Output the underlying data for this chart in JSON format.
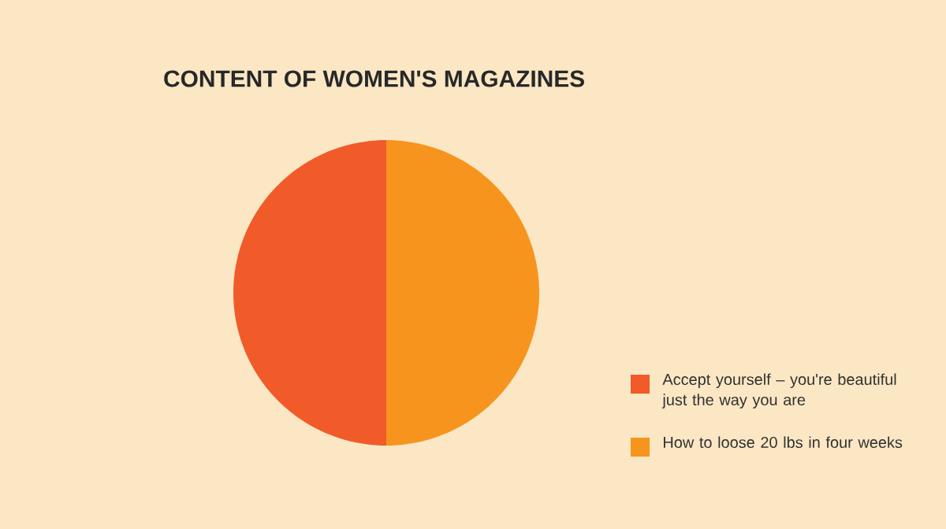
{
  "chart_data": {
    "type": "pie",
    "title": "CONTENT OF WOMEN'S MAGAZINES",
    "categories": [
      "Accept yourself – you're beautiful just the way you are",
      "How to loose 20 lbs in four weeks"
    ],
    "values": [
      50,
      50
    ],
    "colors": [
      "#f15a29",
      "#f7941d"
    ],
    "legend": "bottom right"
  }
}
